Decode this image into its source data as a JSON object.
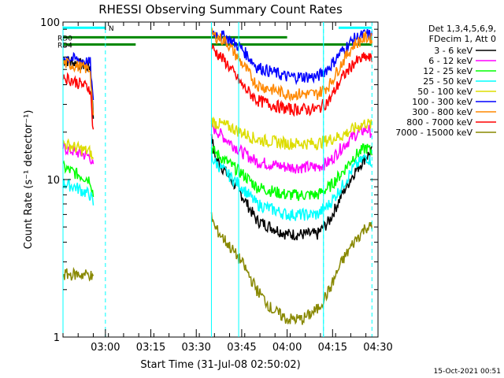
{
  "chart_data": {
    "type": "line",
    "title": "RHESSI Observing Summary Count Rates",
    "xlabel": "Start Time (31-Jul-08 02:50:02)",
    "ylabel": "Count Rate (s⁻¹ detector⁻¹)",
    "yscale": "log",
    "ylim": [
      1,
      100
    ],
    "xlim_minutes": [
      -4,
      100
    ],
    "x_tick_labels": [
      "03:00",
      "03:15",
      "03:30",
      "03:45",
      "04:00",
      "04:15",
      "04:30"
    ],
    "x_tick_minutes": [
      10,
      25,
      40,
      55,
      70,
      85,
      100
    ],
    "y_tick_labels": [
      "1",
      "10",
      "100"
    ],
    "y_tick_values": [
      1,
      10,
      100
    ],
    "legend_header": [
      "Det 1,3,4,5,6,9,",
      "FDecim 1, Att 0"
    ],
    "legend_position": "right",
    "series": [
      {
        "name": "3 - 6 keV",
        "color": "#000000",
        "segments": [
          {
            "x": [
              -4,
              0,
              5,
              6
            ],
            "y": [
              58,
              55,
              52,
              25
            ]
          },
          {
            "x": [
              45,
              46,
              50,
              55,
              60,
              70,
              80,
              84,
              88,
              92,
              96,
              98
            ],
            "y": [
              20,
              14,
              11,
              8,
              5.5,
              4.5,
              4.5,
              5.5,
              8,
              11,
              14,
              15
            ]
          }
        ]
      },
      {
        "name": "6 - 12 keV",
        "color": "#ff00ff",
        "segments": [
          {
            "x": [
              -4,
              0,
              5,
              6
            ],
            "y": [
              16,
              15,
              14,
              12
            ]
          },
          {
            "x": [
              45,
              46,
              50,
              55,
              60,
              70,
              80,
              84,
              88,
              92,
              96,
              98
            ],
            "y": [
              22,
              21,
              18,
              15,
              13,
              12,
              12,
              13,
              16,
              19,
              21,
              20
            ]
          }
        ]
      },
      {
        "name": "12 - 25 keV",
        "color": "#00ff00",
        "segments": [
          {
            "x": [
              -4,
              0,
              5,
              6
            ],
            "y": [
              12,
              11,
              10,
              8
            ]
          },
          {
            "x": [
              45,
              46,
              50,
              55,
              60,
              70,
              80,
              84,
              88,
              92,
              96,
              98
            ],
            "y": [
              16,
              15,
              13,
              11,
              9,
              8,
              8,
              9,
              11,
              14,
              16,
              15
            ]
          }
        ]
      },
      {
        "name": "25 - 50 keV",
        "color": "#00ffff",
        "segments": [
          {
            "x": [
              -4,
              0,
              5,
              6
            ],
            "y": [
              9.5,
              9,
              8,
              7
            ]
          },
          {
            "x": [
              45,
              46,
              50,
              55,
              60,
              70,
              80,
              84,
              88,
              92,
              96,
              98
            ],
            "y": [
              14,
              13,
              11,
              9,
              7,
              6,
              6,
              7,
              9,
              12,
              14,
              13
            ]
          }
        ]
      },
      {
        "name": "50 - 100 keV",
        "color": "#dddd00",
        "segments": [
          {
            "x": [
              -4,
              0,
              5,
              6
            ],
            "y": [
              17,
              16,
              15,
              13
            ]
          },
          {
            "x": [
              45,
              46,
              50,
              55,
              60,
              70,
              80,
              84,
              88,
              92,
              96,
              98
            ],
            "y": [
              24,
              23,
              22,
              20,
              18,
              17,
              17,
              18,
              19,
              21,
              23,
              22
            ]
          }
        ]
      },
      {
        "name": "100 - 300 keV",
        "color": "#0000ff",
        "segments": [
          {
            "x": [
              -4,
              0,
              5,
              6
            ],
            "y": [
              60,
              58,
              55,
              30
            ]
          },
          {
            "x": [
              45,
              46,
              50,
              55,
              60,
              70,
              80,
              84,
              88,
              92,
              96,
              98
            ],
            "y": [
              88,
              85,
              80,
              68,
              52,
              45,
              45,
              52,
              65,
              78,
              84,
              82
            ]
          }
        ]
      },
      {
        "name": "300 - 800 keV",
        "color": "#ff8800",
        "segments": [
          {
            "x": [
              -4,
              0,
              5,
              6
            ],
            "y": [
              55,
              53,
              50,
              25
            ]
          },
          {
            "x": [
              45,
              46,
              50,
              55,
              60,
              70,
              80,
              84,
              88,
              92,
              96,
              98
            ],
            "y": [
              85,
              82,
              75,
              55,
              40,
              35,
              35,
              40,
              55,
              72,
              80,
              78
            ]
          }
        ]
      },
      {
        "name": "800 - 7000 keV",
        "color": "#ff0000",
        "segments": [
          {
            "x": [
              -4,
              0,
              5,
              6
            ],
            "y": [
              45,
              42,
              38,
              20
            ]
          },
          {
            "x": [
              45,
              46,
              50,
              55,
              60,
              70,
              80,
              84,
              88,
              92,
              96,
              98
            ],
            "y": [
              70,
              66,
              55,
              40,
              32,
              28,
              28,
              32,
              44,
              55,
              60,
              58
            ]
          }
        ]
      },
      {
        "name": "7000 - 15000 keV",
        "color": "#888800",
        "segments": [
          {
            "x": [
              -4,
              0,
              5,
              6
            ],
            "y": [
              2.5,
              2.5,
              2.5,
              2.3
            ]
          },
          {
            "x": [
              45,
              46,
              50,
              55,
              60,
              65,
              70,
              75,
              80,
              84,
              88,
              92,
              96,
              98
            ],
            "y": [
              6,
              5,
              4,
              3,
              2,
              1.5,
              1.3,
              1.3,
              1.5,
              2,
              3,
              4,
              5,
              5
            ]
          }
        ]
      }
    ],
    "attenuator_lines": [
      {
        "label": "RD0",
        "color": "#008800",
        "segments": [
          [
            -4,
            70,
            80
          ]
        ]
      },
      {
        "label": "RD4",
        "color": "#008800",
        "segments": [
          [
            -4,
            20,
            72
          ],
          [
            45,
            98,
            72
          ]
        ]
      },
      {
        "label": "N",
        "color": "#00ffff",
        "segments": [
          [
            -4,
            10,
            92
          ],
          [
            87,
            98,
            92
          ]
        ]
      }
    ],
    "night_marker_minutes": [
      10,
      82,
      98
    ],
    "gap_marker_minutes": [
      -4,
      45,
      54,
      82
    ]
  },
  "footer_timestamp": "15-Oct-2021 00:51"
}
